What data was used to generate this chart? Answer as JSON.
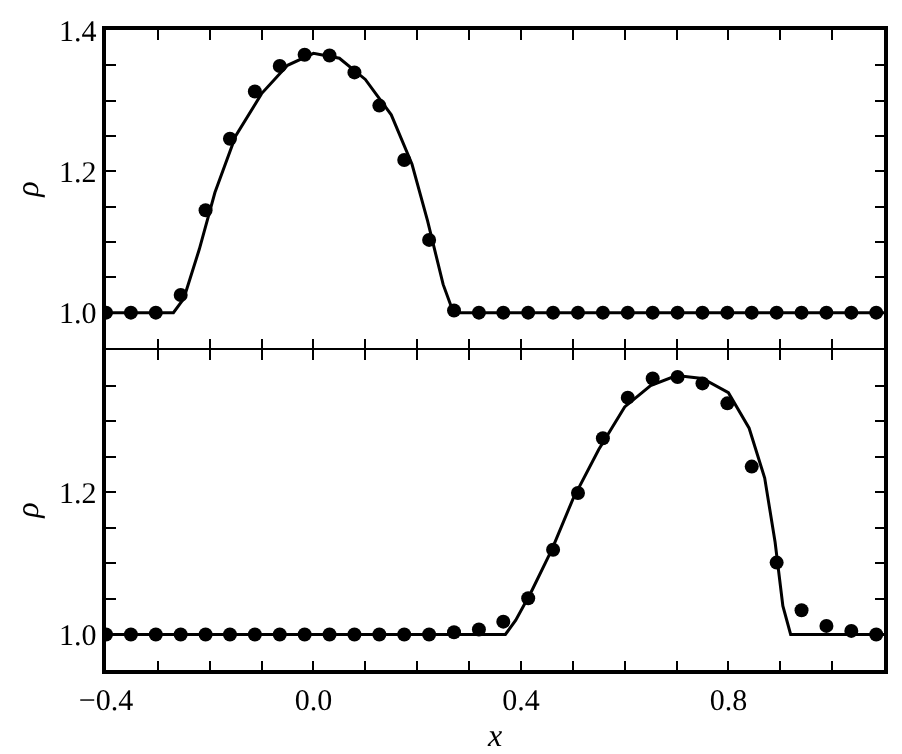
{
  "chart_data": [
    {
      "type": "line",
      "ylabel": "ρ",
      "xlim": [
        -0.4,
        1.1
      ],
      "ylim": [
        0.95,
        1.4
      ],
      "tick_labels": "y",
      "grid": false,
      "xticks": [
        {
          "value": -0.4,
          "label": null
        },
        {
          "value": -0.3,
          "label": null
        },
        {
          "value": -0.2,
          "label": null
        },
        {
          "value": -0.1,
          "label": null
        },
        {
          "value": 0,
          "label": null
        },
        {
          "value": 0.1,
          "label": null
        },
        {
          "value": 0.2,
          "label": null
        },
        {
          "value": 0.3,
          "label": null
        },
        {
          "value": 0.4,
          "label": null
        },
        {
          "value": 0.5,
          "label": null
        },
        {
          "value": 0.6,
          "label": null
        },
        {
          "value": 0.7,
          "label": null
        },
        {
          "value": 0.8,
          "label": null
        },
        {
          "value": 0.9,
          "label": null
        },
        {
          "value": 1.0,
          "label": null
        },
        {
          "value": 1.1,
          "label": null
        }
      ],
      "yticks": [
        {
          "value": 1,
          "label": "1.0"
        },
        {
          "value": 1.05,
          "label": null
        },
        {
          "value": 1.1,
          "label": null
        },
        {
          "value": 1.15,
          "label": null
        },
        {
          "value": 1.2,
          "label": "1.2"
        },
        {
          "value": 1.25,
          "label": null
        },
        {
          "value": 1.3,
          "label": null
        },
        {
          "value": 1.35,
          "label": null
        },
        {
          "value": 1.4,
          "label": "1.4"
        }
      ],
      "series": [
        {
          "type": "line",
          "color": "#000000",
          "marker": "none",
          "line_style": "solid",
          "x": [
            -0.4,
            -0.27,
            -0.25,
            -0.22,
            -0.19,
            -0.15,
            -0.1,
            -0.05,
            0,
            0.05,
            0.1,
            0.15,
            0.19,
            0.22,
            0.25,
            0.27,
            1.1
          ],
          "values": [
            1.0,
            1.0,
            1.02,
            1.09,
            1.17,
            1.25,
            1.31,
            1.35,
            1.367,
            1.36,
            1.33,
            1.28,
            1.21,
            1.13,
            1.04,
            1.0,
            1.0
          ]
        },
        {
          "type": "scatter",
          "color": "#000000",
          "marker": "circle",
          "x": [
            -0.4,
            -0.352,
            -0.304,
            -0.256,
            -0.208,
            -0.161,
            -0.113,
            -0.065,
            -0.017,
            0.031,
            0.079,
            0.127,
            0.175,
            0.223,
            0.271,
            0.319,
            0.366,
            0.414,
            0.462,
            0.51,
            0.558,
            0.606,
            0.654,
            0.702,
            0.75,
            0.798,
            0.845,
            0.893,
            0.941,
            0.989,
            1.037,
            1.085
          ],
          "values": [
            1.0,
            1.0,
            1.0,
            1.025,
            1.145,
            1.246,
            1.313,
            1.349,
            1.365,
            1.364,
            1.34,
            1.293,
            1.216,
            1.103,
            1.003,
            1.0,
            1.0,
            1.0,
            1.0,
            1.0,
            1.0,
            1.0,
            1.0,
            1.0,
            1.0,
            1.0,
            1.0,
            1.0,
            1.0,
            1.0,
            1.0,
            1.0
          ]
        }
      ]
    },
    {
      "type": "line",
      "xlabel": "x",
      "ylabel": "ρ",
      "xlim": [
        -0.4,
        1.1
      ],
      "ylim": [
        0.95,
        1.4
      ],
      "grid": false,
      "xticks": [
        {
          "value": -0.4,
          "label": "−0.4"
        },
        {
          "value": -0.3,
          "label": null
        },
        {
          "value": -0.2,
          "label": null
        },
        {
          "value": -0.1,
          "label": null
        },
        {
          "value": 0,
          "label": "0.0"
        },
        {
          "value": 0.1,
          "label": null
        },
        {
          "value": 0.2,
          "label": null
        },
        {
          "value": 0.3,
          "label": null
        },
        0.4,
        {
          "value": 0.5,
          "label": null
        },
        {
          "value": 0.6,
          "label": null
        },
        {
          "value": 0.7,
          "label": null
        },
        0.8,
        {
          "value": 0.9,
          "label": null
        },
        {
          "value": 1.0,
          "label": null
        },
        {
          "value": 1.1,
          "label": null
        }
      ],
      "yticks": [
        {
          "value": 1,
          "label": "1.0"
        },
        {
          "value": 1.05,
          "label": null
        },
        {
          "value": 1.1,
          "label": null
        },
        {
          "value": 1.15,
          "label": null
        },
        {
          "value": 1.2,
          "label": "1.2"
        },
        {
          "value": 1.25,
          "label": null
        },
        {
          "value": 1.3,
          "label": null
        },
        {
          "value": 1.35,
          "label": null
        },
        {
          "value": 1.4,
          "label": null
        }
      ],
      "series": [
        {
          "type": "line",
          "color": "#000000",
          "marker": "none",
          "line_style": "solid",
          "x": [
            -0.4,
            0.37,
            0.39,
            0.42,
            0.46,
            0.5,
            0.55,
            0.6,
            0.65,
            0.7,
            0.75,
            0.8,
            0.84,
            0.87,
            0.89,
            0.905,
            0.92,
            1.1
          ],
          "values": [
            1.0,
            1.0,
            1.02,
            1.06,
            1.12,
            1.19,
            1.26,
            1.32,
            1.35,
            1.364,
            1.36,
            1.34,
            1.29,
            1.22,
            1.13,
            1.04,
            1.0,
            1.0
          ]
        },
        {
          "type": "scatter",
          "color": "#000000",
          "marker": "circle",
          "x": [
            -0.4,
            -0.352,
            -0.304,
            -0.256,
            -0.208,
            -0.161,
            -0.113,
            -0.065,
            -0.017,
            0.031,
            0.079,
            0.127,
            0.175,
            0.223,
            0.271,
            0.319,
            0.366,
            0.414,
            0.462,
            0.51,
            0.558,
            0.606,
            0.654,
            0.702,
            0.75,
            0.798,
            0.845,
            0.893,
            0.941,
            0.989,
            1.037,
            1.085
          ],
          "values": [
            1.0,
            1.0,
            1.0,
            1.0,
            1.0,
            1.0,
            1.0,
            1.0,
            1.0,
            1.0,
            1.0,
            1.0,
            1.0,
            1.0,
            1.003,
            1.007,
            1.018,
            1.051,
            1.119,
            1.199,
            1.276,
            1.333,
            1.36,
            1.362,
            1.353,
            1.325,
            1.236,
            1.101,
            1.034,
            1.012,
            1.005,
            1.0
          ]
        }
      ]
    }
  ]
}
